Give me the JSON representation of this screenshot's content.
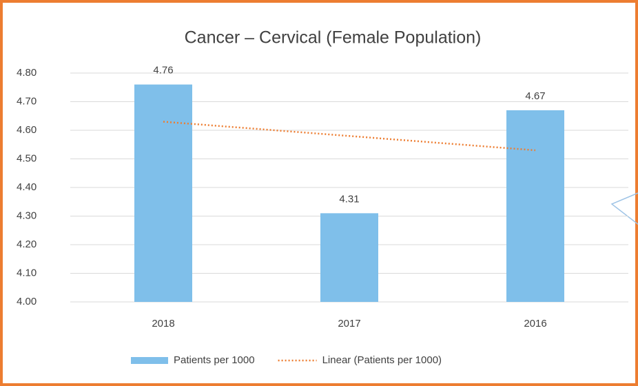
{
  "chart_data": {
    "type": "bar",
    "title": "Cancer – Cervical (Female Population)",
    "categories": [
      "2018",
      "2017",
      "2016"
    ],
    "series": [
      {
        "name": "Patients per 1000",
        "color": "#7fbfea",
        "values": [
          4.76,
          4.31,
          4.67
        ],
        "data_labels": true
      },
      {
        "name": "Linear (Patients per 1000)",
        "color": "#ed7d31",
        "type": "line",
        "line_style": "dotted",
        "values": [
          4.63,
          4.58,
          4.53
        ]
      }
    ],
    "ylim": [
      4.0,
      4.8
    ],
    "yticks": [
      {
        "value": 4.0,
        "label": "4.00"
      },
      {
        "value": 4.1,
        "label": "4.10"
      },
      {
        "value": 4.2,
        "label": "4.20"
      },
      {
        "value": 4.3,
        "label": "4.30"
      },
      {
        "value": 4.4,
        "label": "4.40"
      },
      {
        "value": 4.5,
        "label": "4.50"
      },
      {
        "value": 4.6,
        "label": "4.60"
      },
      {
        "value": 4.7,
        "label": "4.70"
      },
      {
        "value": 4.8,
        "label": "4.80"
      }
    ],
    "grid": true,
    "legend": "bottom"
  }
}
